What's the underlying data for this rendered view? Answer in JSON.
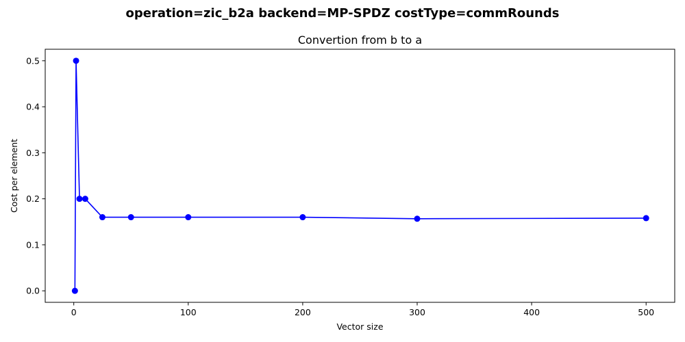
{
  "chart_data": {
    "type": "line",
    "suptitle": "operation=zic_b2a backend=MP-SPDZ costType=commRounds",
    "title": "Convertion from b to a",
    "xlabel": "Vector size",
    "ylabel": "Cost per element",
    "xlim": [
      -24.95,
      525
    ],
    "ylim": [
      -0.025,
      0.525
    ],
    "xticks": [
      0,
      100,
      200,
      300,
      400,
      500
    ],
    "yticks": [
      0.0,
      0.1,
      0.2,
      0.3,
      0.4,
      0.5
    ],
    "xtick_labels": [
      "0",
      "100",
      "200",
      "300",
      "400",
      "500"
    ],
    "ytick_labels": [
      "0.0",
      "0.1",
      "0.2",
      "0.3",
      "0.4",
      "0.5"
    ],
    "grid": false,
    "series": [
      {
        "color": "#0000ff",
        "marker": "circle",
        "x": [
          1,
          2,
          5,
          10,
          25,
          50,
          100,
          200,
          300,
          500
        ],
        "y": [
          0.0,
          0.5,
          0.2,
          0.2,
          0.16,
          0.16,
          0.16,
          0.16,
          0.1567,
          0.158
        ]
      }
    ]
  }
}
